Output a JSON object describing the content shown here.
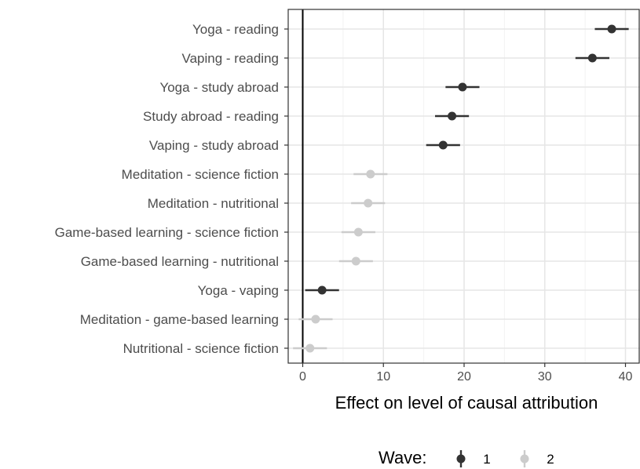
{
  "chart_data": {
    "type": "scatter",
    "subtype": "point-range (dot with horizontal interval)",
    "title": "",
    "xlabel": "Effect on level of causal attribution",
    "ylabel": "",
    "xlim": [
      -1.8,
      41.8
    ],
    "xticks": [
      0,
      10,
      20,
      30,
      40
    ],
    "grid": true,
    "reference_line_x": 0,
    "legend": {
      "title": "Wave:",
      "position": "bottom",
      "items": [
        {
          "label": "1",
          "color": "#333333"
        },
        {
          "label": "2",
          "color": "#cccccc"
        }
      ]
    },
    "categories": [
      "Yoga - reading",
      "Vaping - reading",
      "Yoga - study abroad",
      "Study abroad - reading",
      "Vaping - study abroad",
      "Meditation - science fiction",
      "Meditation - nutritional",
      "Game-based learning - science fiction",
      "Game-based learning - nutritional",
      "Yoga - vaping",
      "Meditation - game-based learning",
      "Nutritional - science fiction"
    ],
    "points": [
      {
        "category": "Yoga - reading",
        "wave": "1",
        "estimate": 38.3,
        "low": 36.2,
        "high": 40.4
      },
      {
        "category": "Vaping - reading",
        "wave": "1",
        "estimate": 35.9,
        "low": 33.8,
        "high": 38.0
      },
      {
        "category": "Yoga - study abroad",
        "wave": "1",
        "estimate": 19.8,
        "low": 17.7,
        "high": 21.9
      },
      {
        "category": "Study abroad - reading",
        "wave": "1",
        "estimate": 18.5,
        "low": 16.4,
        "high": 20.6
      },
      {
        "category": "Vaping - study abroad",
        "wave": "1",
        "estimate": 17.4,
        "low": 15.3,
        "high": 19.5
      },
      {
        "category": "Meditation - science fiction",
        "wave": "2",
        "estimate": 8.4,
        "low": 6.3,
        "high": 10.5
      },
      {
        "category": "Meditation - nutritional",
        "wave": "2",
        "estimate": 8.1,
        "low": 6.0,
        "high": 10.2
      },
      {
        "category": "Game-based learning - science fiction",
        "wave": "2",
        "estimate": 6.9,
        "low": 4.8,
        "high": 9.0
      },
      {
        "category": "Game-based learning - nutritional",
        "wave": "2",
        "estimate": 6.6,
        "low": 4.5,
        "high": 8.7
      },
      {
        "category": "Yoga - vaping",
        "wave": "1",
        "estimate": 2.4,
        "low": 0.3,
        "high": 4.5
      },
      {
        "category": "Meditation - game-based learning",
        "wave": "2",
        "estimate": 1.6,
        "low": -0.5,
        "high": 3.7
      },
      {
        "category": "Nutritional - science fiction",
        "wave": "2",
        "estimate": 0.9,
        "low": -1.2,
        "high": 3.0
      }
    ]
  }
}
